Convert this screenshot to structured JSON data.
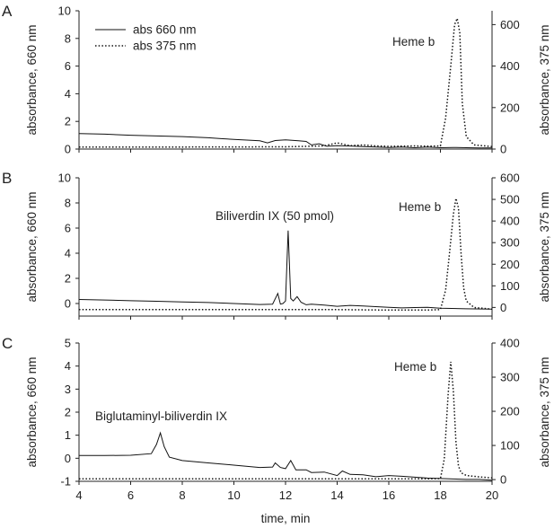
{
  "chart_data": [
    {
      "panel_label": "A",
      "type": "line",
      "xlabel": "",
      "ylabel_left": "absorbance, 660 nm",
      "ylabel_right": "absorbance, 375 nm",
      "xlim": [
        4,
        20
      ],
      "ylim_left": [
        0,
        10
      ],
      "ylim_right": [
        0,
        666.67
      ],
      "yticks_left": [
        0,
        2,
        4,
        6,
        8,
        10
      ],
      "yticks_right": [
        0,
        200,
        400,
        600
      ],
      "legend": {
        "position": "top-left",
        "entries": [
          "abs 660 nm",
          "abs 375 nm"
        ]
      },
      "annotations": [
        {
          "text": "Heme b",
          "x": 17.3,
          "y_left": 7.4
        }
      ],
      "series": [
        {
          "name": "abs 660 nm",
          "axis": "left",
          "style": "solid",
          "x": [
            4.0,
            5.0,
            6.0,
            7.0,
            8.0,
            9.0,
            9.5,
            10.0,
            10.5,
            11.0,
            11.3,
            11.6,
            12.0,
            12.5,
            12.8,
            13.0,
            13.3,
            13.6,
            14.0,
            14.5,
            15.0,
            15.5,
            16.0,
            16.5,
            17.0,
            17.5,
            18.0,
            18.5,
            19.0,
            19.5,
            20.0
          ],
          "y": [
            1.12,
            1.08,
            1.0,
            0.95,
            0.9,
            0.82,
            0.75,
            0.7,
            0.65,
            0.6,
            0.45,
            0.62,
            0.66,
            0.6,
            0.55,
            0.3,
            0.38,
            0.2,
            0.25,
            0.22,
            0.18,
            0.15,
            0.12,
            0.15,
            0.1,
            0.14,
            0.1,
            0.12,
            0.1,
            0.08,
            0.08
          ]
        },
        {
          "name": "abs 375 nm",
          "axis": "right",
          "style": "dotted",
          "x": [
            4.0,
            8.0,
            12.0,
            13.5,
            14.0,
            14.5,
            15.0,
            15.5,
            16.0,
            17.0,
            17.5,
            18.0,
            18.2,
            18.4,
            18.55,
            18.65,
            18.75,
            18.85,
            19.0,
            19.3,
            20.0
          ],
          "y": [
            10,
            10,
            11,
            15,
            30,
            16,
            20,
            15,
            13,
            15,
            14,
            15,
            150,
            400,
            600,
            630,
            560,
            220,
            60,
            20,
            12
          ]
        }
      ]
    },
    {
      "panel_label": "B",
      "type": "line",
      "xlabel": "",
      "ylabel_left": "absorbance, 660 nm",
      "ylabel_right": "absorbance, 375 nm",
      "xlim": [
        4,
        20
      ],
      "ylim_left": [
        -1,
        10
      ],
      "ylim_right": [
        -40,
        600
      ],
      "yticks_left": [
        0,
        2,
        4,
        6,
        8,
        10
      ],
      "yticks_right": [
        0,
        100,
        200,
        300,
        400,
        500,
        600
      ],
      "annotations": [
        {
          "text": "Biliverdin IX (50 pmol)",
          "x": 9.8,
          "y_left": 6.8
        },
        {
          "text": "Heme b",
          "x": 17.3,
          "y_left": 7.3
        }
      ],
      "series": [
        {
          "name": "abs 660 nm",
          "axis": "left",
          "style": "solid",
          "x": [
            4.0,
            5.0,
            6.0,
            7.0,
            8.0,
            9.0,
            10.0,
            11.0,
            11.5,
            11.7,
            11.8,
            11.9,
            12.0,
            12.1,
            12.2,
            12.3,
            12.45,
            12.6,
            12.8,
            13.0,
            13.5,
            14.0,
            14.5,
            15.0,
            15.5,
            16.0,
            16.5,
            17.0,
            17.5,
            18.0,
            19.0,
            20.0
          ],
          "y": [
            0.32,
            0.28,
            0.22,
            0.18,
            0.12,
            0.08,
            0.0,
            -0.08,
            -0.05,
            0.8,
            -0.05,
            0.0,
            0.2,
            5.8,
            0.4,
            0.2,
            0.55,
            0.1,
            -0.1,
            -0.05,
            -0.12,
            -0.22,
            -0.15,
            -0.2,
            -0.25,
            -0.3,
            -0.35,
            -0.32,
            -0.3,
            -0.38,
            -0.42,
            -0.45
          ]
        },
        {
          "name": "abs 375 nm",
          "axis": "right",
          "style": "dotted",
          "x": [
            4.0,
            8.0,
            12.0,
            14.0,
            16.0,
            17.5,
            18.0,
            18.2,
            18.35,
            18.5,
            18.6,
            18.7,
            18.8,
            18.9,
            19.0,
            19.3,
            20.0
          ],
          "y": [
            -10,
            -10,
            -10,
            -10,
            -12,
            -12,
            -10,
            80,
            250,
            430,
            505,
            460,
            250,
            90,
            30,
            0,
            -8
          ]
        }
      ]
    },
    {
      "panel_label": "C",
      "type": "line",
      "xlabel": "time, min",
      "ylabel_left": "absorbance, 660 nm",
      "ylabel_right": "absorbance, 375 nm",
      "xlim": [
        4,
        20
      ],
      "ylim_left": [
        -1,
        5
      ],
      "ylim_right": [
        -5,
        400
      ],
      "yticks_left": [
        -1,
        0,
        1,
        2,
        3,
        4,
        5
      ],
      "yticks_right": [
        0,
        100,
        200,
        300,
        400
      ],
      "xticks": [
        4,
        6,
        8,
        10,
        12,
        14,
        16,
        18,
        20
      ],
      "annotations": [
        {
          "text": "Biglutaminyl-biliverdin IX",
          "x": 5.3,
          "y_left": 1.7
        },
        {
          "text": "Heme b",
          "x": 17.2,
          "y_left": 4.2
        }
      ],
      "series": [
        {
          "name": "abs 660 nm",
          "axis": "left",
          "style": "solid",
          "x": [
            4.0,
            5.0,
            6.0,
            6.8,
            7.0,
            7.15,
            7.3,
            7.5,
            8.0,
            9.0,
            10.0,
            11.0,
            11.5,
            11.6,
            11.8,
            12.0,
            12.2,
            12.4,
            12.8,
            13.0,
            13.5,
            14.0,
            14.2,
            14.5,
            15.0,
            15.5,
            16.0,
            16.5,
            17.0,
            17.5,
            18.0,
            18.5,
            19.0,
            19.5,
            20.0
          ],
          "y": [
            0.12,
            0.12,
            0.13,
            0.2,
            0.6,
            1.1,
            0.5,
            0.05,
            -0.1,
            -0.2,
            -0.3,
            -0.4,
            -0.38,
            -0.2,
            -0.4,
            -0.45,
            -0.1,
            -0.5,
            -0.5,
            -0.62,
            -0.6,
            -0.75,
            -0.55,
            -0.7,
            -0.72,
            -0.8,
            -0.75,
            -0.78,
            -0.82,
            -0.86,
            -0.88,
            -0.9,
            -0.92,
            -0.92,
            -0.95
          ]
        },
        {
          "name": "abs 375 nm",
          "axis": "right",
          "style": "dotted",
          "x": [
            4.0,
            8.0,
            12.0,
            16.0,
            17.5,
            18.0,
            18.15,
            18.3,
            18.4,
            18.5,
            18.6,
            18.7,
            18.8,
            19.0,
            19.5,
            20.0
          ],
          "y": [
            2,
            2,
            2,
            2,
            2,
            3,
            60,
            250,
            345,
            260,
            110,
            40,
            20,
            12,
            8,
            5
          ]
        }
      ]
    }
  ]
}
